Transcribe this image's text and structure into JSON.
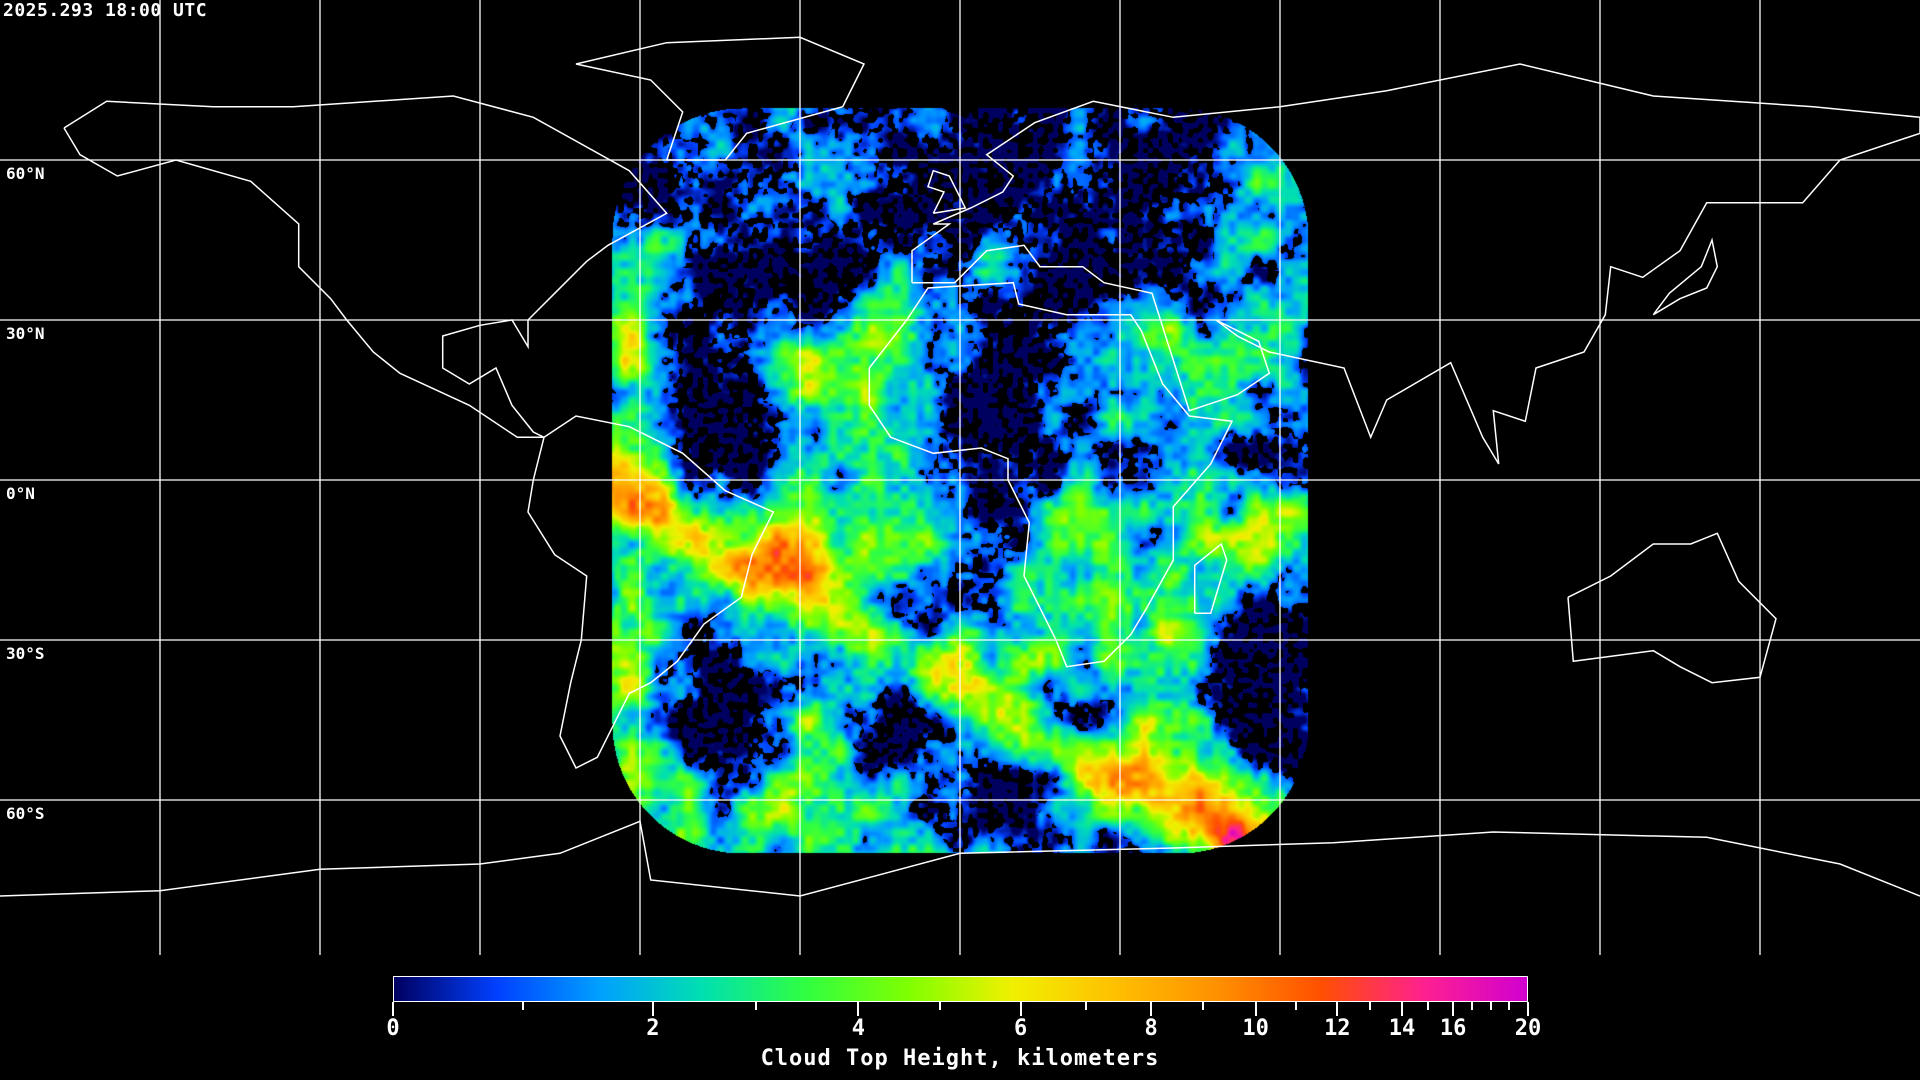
{
  "header": {
    "timestamp": "2025.293 18:00 UTC"
  },
  "map": {
    "projection": "equirectangular",
    "graticule_step_deg": 30,
    "lat_labels": [
      "60°N",
      "30°N",
      "0°N",
      "30°S",
      "60°S"
    ],
    "coastline_color": "#ffffff",
    "grid_color": "#ffffff"
  },
  "colorbar": {
    "label": "Cloud Top Height, kilometers",
    "range": [
      0,
      20
    ],
    "ticks": [
      "0",
      "2",
      "4",
      "6",
      "8",
      "10",
      "12",
      "14",
      "16",
      "20"
    ],
    "colors": [
      "#000060",
      "#0040ff",
      "#00a0ff",
      "#00e0b0",
      "#30ff40",
      "#80ff00",
      "#f0f000",
      "#ffc000",
      "#ff9000",
      "#ff5000",
      "#ff2090",
      "#d000d0"
    ]
  }
}
